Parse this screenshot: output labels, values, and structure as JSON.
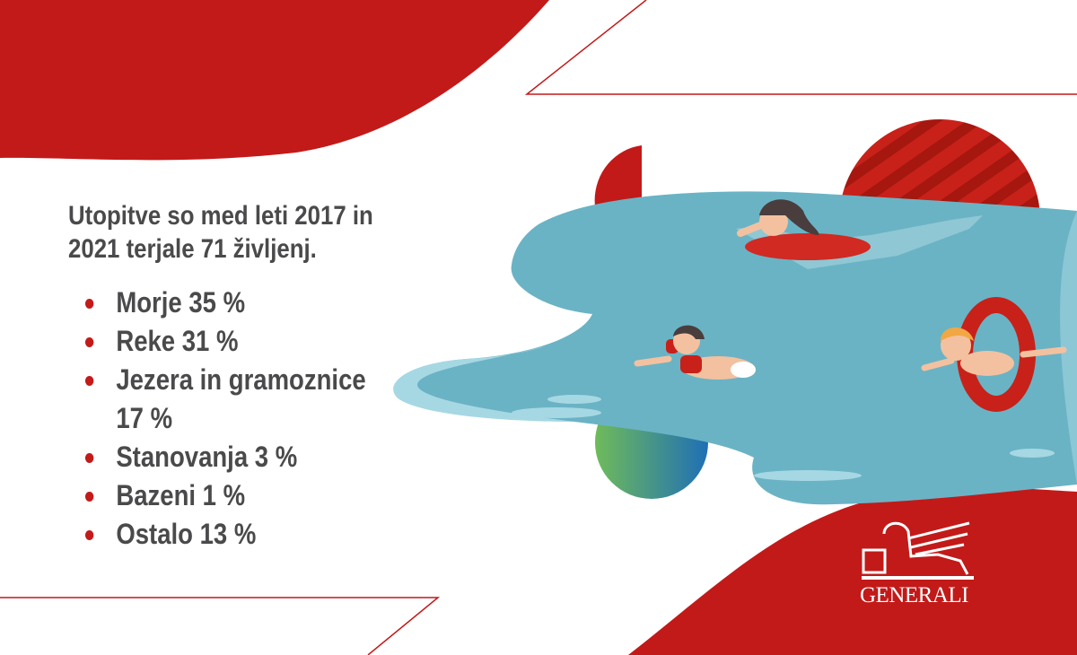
{
  "headline": "Utopitve so med leti 2017 in 2021 terjale 71 življenj.",
  "items": [
    {
      "label": "Morje 35 %"
    },
    {
      "label": "Reke 31 %"
    },
    {
      "label": "Jezera in gramoznice 17 %"
    },
    {
      "label": "Stanovanja 3 %"
    },
    {
      "label": "Bazeni 1 %"
    },
    {
      "label": "Ostalo 13 %"
    }
  ],
  "brand": {
    "name": "GENERALI",
    "logo_icon": "winged-lion-icon"
  },
  "colors": {
    "brand_red": "#c21a19",
    "text": "#4a4a4c",
    "water": "#6ab3c5",
    "water_light": "#a6d8e3"
  }
}
